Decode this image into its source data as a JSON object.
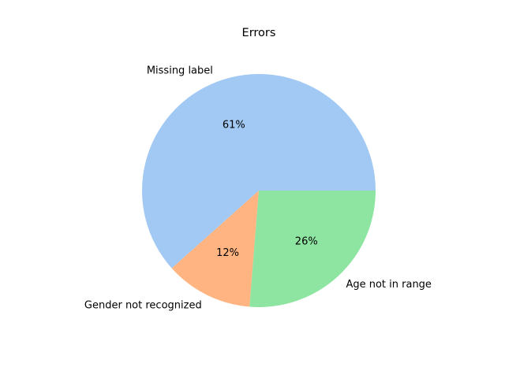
{
  "chart_data": {
    "type": "pie",
    "title": "Errors",
    "slices": [
      {
        "label": "Missing label",
        "value": 61,
        "pct_label": "61%",
        "color": "#a1c9f4"
      },
      {
        "label": "Gender not recognized",
        "value": 12,
        "pct_label": "12%",
        "color": "#ffb482"
      },
      {
        "label": "Age not in range",
        "value": 26,
        "pct_label": "26%",
        "color": "#8de5a1"
      }
    ],
    "start_angle_deg": 0,
    "direction": "counterclockwise",
    "legend": "none"
  }
}
